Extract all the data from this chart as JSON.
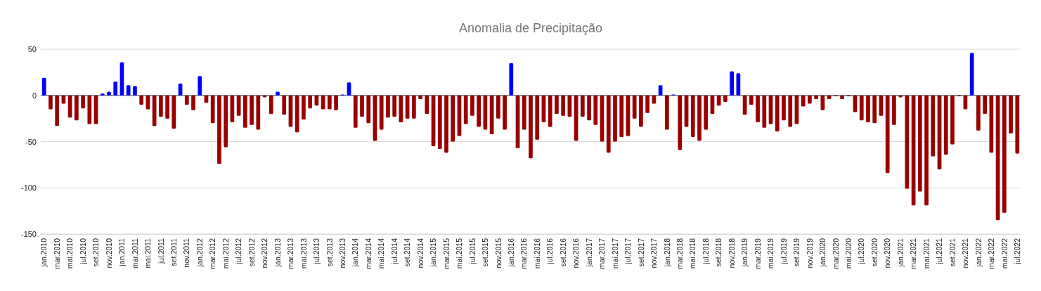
{
  "chart_data": {
    "type": "bar",
    "title": "Anomalia de Precipitação",
    "categories": [
      "jan.2010",
      null,
      "mar.2010",
      null,
      "mai.2010",
      null,
      "jul.2010",
      null,
      "set.2010",
      null,
      "nov.2010",
      null,
      "jan.2011",
      null,
      "mar.2011",
      null,
      "mai.2011",
      null,
      "jul.2011",
      null,
      "set.2011",
      null,
      "nov.2011",
      null,
      "jan.2012",
      null,
      "mar.2012",
      null,
      "mai.2012",
      null,
      "jul.2012",
      null,
      "set.2012",
      null,
      "nov.2012",
      null,
      "jan.2013",
      null,
      "mar.2013",
      null,
      "mai.2013",
      null,
      "jul.2013",
      null,
      "set.2013",
      null,
      "nov.2013",
      null,
      "jan.2014",
      null,
      "mar.2014",
      null,
      "mai.2014",
      null,
      "jul.2014",
      null,
      "set.2014",
      null,
      "nov.2014",
      null,
      "jan.2015",
      null,
      "mar.2015",
      null,
      "mai.2015",
      null,
      "jul.2015",
      null,
      "set.2015",
      null,
      "nov.2015",
      null,
      "jan.2016",
      null,
      "mar.2016",
      null,
      "mai.2016",
      null,
      "jul.2016",
      null,
      "set.2016",
      null,
      "nov.2016",
      null,
      "jan.2017",
      null,
      "mar.2017",
      null,
      "mai.2017",
      null,
      "jul.2017",
      null,
      "set.2017",
      null,
      "nov.2017",
      null,
      "jan.2018",
      null,
      "mar.2018",
      null,
      "mai.2018",
      null,
      "jul.2018",
      null,
      "set.2018",
      null,
      "nov.2018",
      null,
      "jan.2019",
      null,
      "mar.2019",
      null,
      "mai.2019",
      null,
      "jul.2019",
      null,
      "set.2019",
      null,
      "nov.2019",
      null,
      "jan.2020",
      null,
      "mar.2020",
      null,
      "mai.2020",
      null,
      "jul.2020",
      null,
      "set.2020",
      null,
      "nov.2020",
      null,
      "jan.2021",
      null,
      "mar.2021",
      null,
      "mai.2021",
      null,
      "jul.2021",
      null,
      "set.2021",
      null,
      "nov.2021",
      null,
      "jan.2022",
      null,
      "mar.2022",
      null,
      "mai.2022",
      null,
      "jul.2022"
    ],
    "values": [
      19,
      -15,
      -33,
      -9,
      -24,
      -27,
      -14,
      -31,
      -31,
      2,
      4,
      15,
      36,
      11,
      10,
      -10,
      -15,
      -33,
      -23,
      -25,
      -36,
      13,
      -10,
      -16,
      21,
      -8,
      -30,
      -74,
      -56,
      -29,
      -22,
      -35,
      -32,
      -37,
      -2,
      -20,
      4,
      -21,
      -34,
      -40,
      -26,
      -14,
      -11,
      -15,
      -15,
      -16,
      1,
      14,
      -35,
      -23,
      -30,
      -49,
      -37,
      -24,
      -23,
      -29,
      -25,
      -25,
      -4,
      -20,
      -55,
      -58,
      -62,
      -50,
      -44,
      -31,
      -22,
      -34,
      -37,
      -42,
      -25,
      -37,
      35,
      -57,
      -37,
      -68,
      -48,
      -29,
      -34,
      -20,
      -22,
      -23,
      -49,
      -23,
      -27,
      -32,
      -50,
      -62,
      -50,
      -45,
      -44,
      -25,
      -34,
      -19,
      -9,
      11,
      -37,
      1,
      -59,
      -34,
      -45,
      -49,
      -37,
      -20,
      -11,
      -7,
      26,
      24,
      -21,
      -10,
      -29,
      -35,
      -31,
      -39,
      -27,
      -34,
      -31,
      -12,
      -9,
      -4,
      -16,
      -4,
      -1,
      -4,
      -1,
      -18,
      -27,
      -29,
      -30,
      -22,
      -84,
      -32,
      -2,
      -101,
      -119,
      -104,
      -119,
      -66,
      -80,
      -64,
      -53,
      -1,
      -15,
      46,
      -38,
      -20,
      -62,
      -135,
      -127,
      -41,
      -63
    ],
    "colors": [
      "#0000ff",
      "#990000",
      "#990000",
      "#990000",
      "#990000",
      "#990000",
      "#990000",
      "#990000",
      "#990000",
      "#0000ff",
      "#0000ff",
      "#0000ff",
      "#0000ff",
      "#0000ff",
      "#0000ff",
      "#990000",
      "#990000",
      "#990000",
      "#990000",
      "#990000",
      "#990000",
      "#0000ff",
      "#990000",
      "#990000",
      "#0000ff",
      "#990000",
      "#990000",
      "#990000",
      "#990000",
      "#990000",
      "#990000",
      "#990000",
      "#990000",
      "#990000",
      "#990000",
      "#990000",
      "#0000ff",
      "#990000",
      "#990000",
      "#990000",
      "#990000",
      "#990000",
      "#990000",
      "#990000",
      "#990000",
      "#990000",
      "#0000ff",
      "#0000ff",
      "#990000",
      "#990000",
      "#990000",
      "#990000",
      "#990000",
      "#990000",
      "#990000",
      "#990000",
      "#990000",
      "#990000",
      "#990000",
      "#990000",
      "#990000",
      "#990000",
      "#990000",
      "#990000",
      "#990000",
      "#990000",
      "#990000",
      "#990000",
      "#990000",
      "#990000",
      "#990000",
      "#990000",
      "#0000ff",
      "#990000",
      "#990000",
      "#990000",
      "#990000",
      "#990000",
      "#990000",
      "#990000",
      "#990000",
      "#990000",
      "#990000",
      "#990000",
      "#990000",
      "#990000",
      "#990000",
      "#990000",
      "#990000",
      "#990000",
      "#990000",
      "#990000",
      "#990000",
      "#990000",
      "#990000",
      "#0000ff",
      "#990000",
      "#0000ff",
      "#990000",
      "#990000",
      "#990000",
      "#990000",
      "#990000",
      "#990000",
      "#990000",
      "#990000",
      "#0000ff",
      "#0000ff",
      "#990000",
      "#990000",
      "#990000",
      "#990000",
      "#990000",
      "#990000",
      "#990000",
      "#990000",
      "#990000",
      "#990000",
      "#990000",
      "#990000",
      "#990000",
      "#990000",
      "#990000",
      "#990000",
      "#990000",
      "#990000",
      "#990000",
      "#990000",
      "#990000",
      "#990000",
      "#990000",
      "#990000",
      "#990000",
      "#990000",
      "#990000",
      "#990000",
      "#990000",
      "#990000",
      "#990000",
      "#990000",
      "#990000",
      "#990000",
      "#990000",
      "#0000ff",
      "#990000",
      "#990000",
      "#990000",
      "#990000",
      "#990000",
      "#990000",
      "#990000"
    ],
    "ylim": [
      -150,
      50
    ],
    "yticks": [
      -150,
      -100,
      -50,
      0,
      50
    ],
    "grid": "y"
  }
}
